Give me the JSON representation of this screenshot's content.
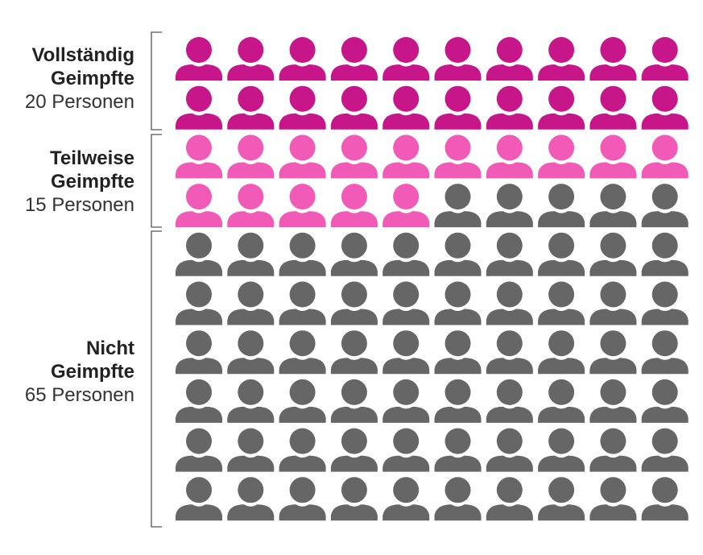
{
  "chart_data": {
    "type": "pictogram",
    "icon": "person-icon",
    "columns": 10,
    "total": 100,
    "groups": [
      {
        "label_line1": "Vollständig",
        "label_line2": "Geimpfte",
        "count_label": "20 Personen",
        "value": 20,
        "color": "#C7168A"
      },
      {
        "label_line1": "Teilweise",
        "label_line2": "Geimpfte",
        "count_label": "15 Personen",
        "value": 15,
        "color": "#F25AB8"
      },
      {
        "label_line1": "Nicht",
        "label_line2": "Geimpfte",
        "count_label": "65 Personen",
        "value": 65,
        "color": "#666666"
      }
    ]
  }
}
